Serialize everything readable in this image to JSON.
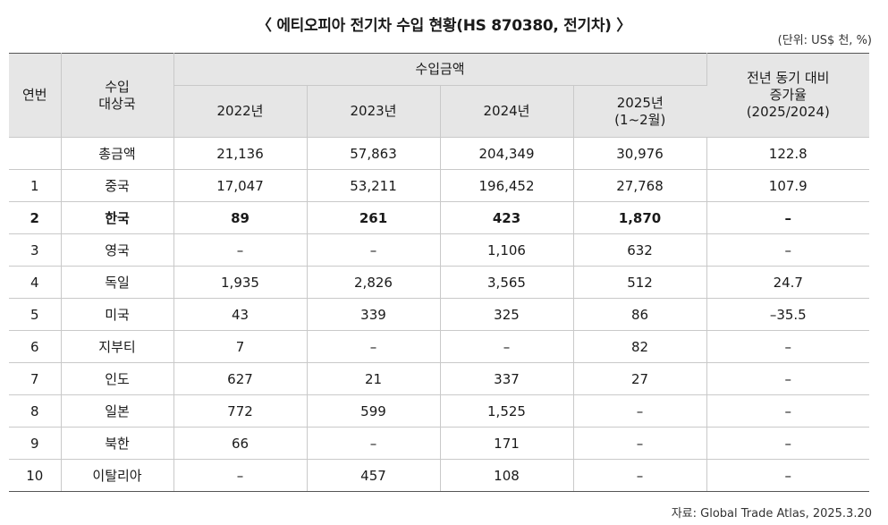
{
  "title": "〈 에티오피아 전기차 수입 현황(HS 870380, 전기차) 〉",
  "unit": "(단위: US$ 천, %)",
  "source": "자료: Global Trade Atlas, 2025.3.20",
  "header": {
    "no": "연번",
    "country": "수입\n대상국",
    "amount_group": "수입금액",
    "y2022": "2022년",
    "y2023": "2023년",
    "y2024": "2024년",
    "y2025": "2025년\n(1~2월)",
    "growth": "전년 동기 대비\n증가율\n(2025/2024)"
  },
  "rows": [
    {
      "no": "",
      "country": "총금액",
      "y2022": "21,136",
      "y2023": "57,863",
      "y2024": "204,349",
      "y2025": "30,976",
      "growth": "122.8"
    },
    {
      "no": "1",
      "country": "중국",
      "y2022": "17,047",
      "y2023": "53,211",
      "y2024": "196,452",
      "y2025": "27,768",
      "growth": "107.9"
    },
    {
      "no": "2",
      "country": "한국",
      "y2022": "89",
      "y2023": "261",
      "y2024": "423",
      "y2025": "1,870",
      "growth": "–"
    },
    {
      "no": "3",
      "country": "영국",
      "y2022": "–",
      "y2023": "–",
      "y2024": "1,106",
      "y2025": "632",
      "growth": "–"
    },
    {
      "no": "4",
      "country": "독일",
      "y2022": "1,935",
      "y2023": "2,826",
      "y2024": "3,565",
      "y2025": "512",
      "growth": "24.7"
    },
    {
      "no": "5",
      "country": "미국",
      "y2022": "43",
      "y2023": "339",
      "y2024": "325",
      "y2025": "86",
      "growth": "–35.5"
    },
    {
      "no": "6",
      "country": "지부티",
      "y2022": "7",
      "y2023": "–",
      "y2024": "–",
      "y2025": "82",
      "growth": "–"
    },
    {
      "no": "7",
      "country": "인도",
      "y2022": "627",
      "y2023": "21",
      "y2024": "337",
      "y2025": "27",
      "growth": "–"
    },
    {
      "no": "8",
      "country": "일본",
      "y2022": "772",
      "y2023": "599",
      "y2024": "1,525",
      "y2025": "–",
      "growth": "–"
    },
    {
      "no": "9",
      "country": "북한",
      "y2022": "66",
      "y2023": "–",
      "y2024": "171",
      "y2025": "–",
      "growth": "–"
    },
    {
      "no": "10",
      "country": "이탈리아",
      "y2022": "–",
      "y2023": "457",
      "y2024": "108",
      "y2025": "–",
      "growth": "–"
    }
  ]
}
